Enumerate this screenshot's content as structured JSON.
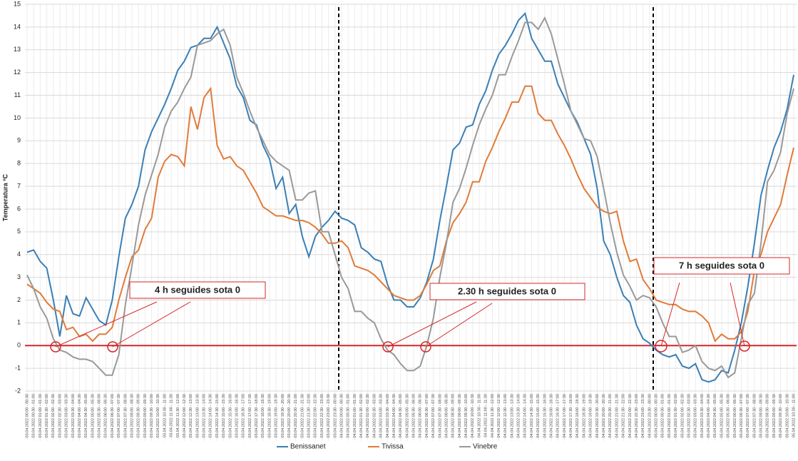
{
  "chart_data": {
    "type": "line",
    "y_label": "Temperatura ºC",
    "annotations": [
      "4 h seguides sota 0",
      "2.30 h seguides sota 0",
      "7 h seguides sota 0"
    ],
    "ylim": [
      -2,
      15
    ],
    "yticks": [
      -2,
      -1,
      0,
      1,
      2,
      3,
      4,
      5,
      6,
      7,
      8,
      9,
      10,
      11,
      12,
      13,
      14,
      15
    ],
    "grid": true,
    "legend": "bottom",
    "categories": [
      "03.04.2022 00:00 - 00:30",
      "03.04.2022 00:30 - 01:00",
      "03.04.2022 01:00 - 01:30",
      "03.04.2022 01:30 - 02:00",
      "03.04.2022 02:00 - 02:30",
      "03.04.2022 02:30 - 03:00",
      "03.04.2022 03:00 - 03:30",
      "03.04.2022 03:30 - 04:00",
      "03.04.2022 04:00 - 04:30",
      "03.04.2022 04:30 - 05:00",
      "03.04.2022 05:00 - 05:30",
      "03.04.2022 05:30 - 06:00",
      "03.04.2022 06:00 - 06:30",
      "03.04.2022 06:30 - 07:00",
      "03.04.2022 07:00 - 07:30",
      "03.04.2022 07:30 - 08:00",
      "03.04.2022 08:00 - 08:30",
      "03.04.2022 08:30 - 09:00",
      "03.04.2022 09:00 - 09:30",
      "03.04.2022 09:30 - 10:00",
      "03.04.2022 10:00 - 10:30",
      "03.04.2022 10:30 - 11:00",
      "03.04.2022 11:00 - 11:30",
      "03.04.2022 11:30 - 12:00",
      "03.04.2022 12:00 - 12:30",
      "03.04.2022 12:30 - 13:00",
      "03.04.2022 13:00 - 13:30",
      "03.04.2022 13:30 - 14:00",
      "03.04.2022 14:00 - 14:30",
      "03.04.2022 14:30 - 15:00",
      "03.04.2022 15:00 - 15:30",
      "03.04.2022 15:30 - 16:00",
      "03.04.2022 16:00 - 16:30",
      "03.04.2022 16:30 - 17:00",
      "03.04.2022 17:00 - 17:30",
      "03.04.2022 17:30 - 18:00",
      "03.04.2022 18:00 - 18:30",
      "03.04.2022 18:30 - 19:00",
      "03.04.2022 19:00 - 19:30",
      "03.04.2022 19:30 - 20:00",
      "03.04.2022 20:00 - 20:30",
      "03.04.2022 20:30 - 21:00",
      "03.04.2022 21:00 - 21:30",
      "03.04.2022 21:30 - 22:00",
      "03.04.2022 22:00 - 22:30",
      "03.04.2022 22:30 - 23:00",
      "03.04.2022 23:00 - 23:30",
      "03.04.2022 23:30 - 00:00",
      "04.04.2022 00:00 - 00:30",
      "04.04.2022 00:30 - 01:00",
      "04.04.2022 01:00 - 01:30",
      "04.04.2022 01:30 - 02:00",
      "04.04.2022 02:00 - 02:30",
      "04.04.2022 02:30 - 03:00",
      "04.04.2022 03:00 - 03:30",
      "04.04.2022 03:30 - 04:00",
      "04.04.2022 04:00 - 04:30",
      "04.04.2022 04:30 - 05:00",
      "04.04.2022 05:00 - 05:30",
      "04.04.2022 05:30 - 06:00",
      "04.04.2022 06:00 - 06:30",
      "04.04.2022 06:30 - 07:00",
      "04.04.2022 07:00 - 07:30",
      "04.04.2022 07:30 - 08:00",
      "04.04.2022 08:00 - 08:30",
      "04.04.2022 08:30 - 09:00",
      "04.04.2022 09:00 - 09:30",
      "04.04.2022 09:30 - 10:00",
      "04.04.2022 10:00 - 10:30",
      "04.04.2022 10:30 - 11:00",
      "04.04.2022 11:00 - 11:30",
      "04.04.2022 11:30 - 12:00",
      "04.04.2022 12:00 - 12:30",
      "04.04.2022 12:30 - 13:00",
      "04.04.2022 13:00 - 13:30",
      "04.04.2022 13:30 - 14:00",
      "04.04.2022 14:00 - 14:30",
      "04.04.2022 14:30 - 15:00",
      "04.04.2022 15:00 - 15:30",
      "04.04.2022 15:30 - 16:00",
      "04.04.2022 16:00 - 16:30",
      "04.04.2022 16:30 - 17:00",
      "04.04.2022 17:00 - 17:30",
      "04.04.2022 17:30 - 18:00",
      "04.04.2022 18:00 - 18:30",
      "04.04.2022 18:30 - 19:00",
      "04.04.2022 19:00 - 19:30",
      "04.04.2022 19:30 - 20:00",
      "04.04.2022 20:00 - 20:30",
      "04.04.2022 20:30 - 21:00",
      "04.04.2022 21:00 - 21:30",
      "04.04.2022 21:30 - 22:00",
      "04.04.2022 22:00 - 22:30",
      "04.04.2022 22:30 - 23:00",
      "04.04.2022 23:00 - 23:30",
      "04.04.2022 23:30 - 00:00",
      "05.04.2022 00:00 - 00:30",
      "05.04.2022 00:30 - 01:00",
      "05.04.2022 01:00 - 01:30",
      "05.04.2022 01:30 - 02:00",
      "05.04.2022 02:00 - 02:30",
      "05.04.2022 02:30 - 03:00",
      "05.04.2022 03:00 - 03:30",
      "05.04.2022 03:30 - 04:00",
      "05.04.2022 04:00 - 04:30",
      "05.04.2022 04:30 - 05:00",
      "05.04.2022 05:00 - 05:30",
      "05.04.2022 05:30 - 06:00",
      "05.04.2022 06:00 - 06:30",
      "05.04.2022 06:30 - 07:00",
      "05.04.2022 07:00 - 07:30",
      "05.04.2022 07:30 - 08:00",
      "05.04.2022 08:00 - 08:30",
      "05.04.2022 08:30 - 09:00",
      "05.04.2022 09:00 - 09:30",
      "05.04.2022 09:30 - 10:00",
      "05.04.2022 10:00 - 10:30",
      "05.04.2022 10:30 - 11:00"
    ],
    "series": [
      {
        "name": "Benissanet",
        "color": "#3a7fb5",
        "values": [
          4.1,
          4.2,
          3.7,
          3.4,
          2.0,
          0.4,
          2.2,
          1.4,
          1.3,
          2.1,
          1.6,
          1.1,
          0.9,
          2.0,
          3.9,
          5.6,
          6.2,
          7.0,
          8.6,
          9.4,
          10.0,
          10.6,
          11.3,
          12.1,
          12.5,
          13.1,
          13.2,
          13.5,
          13.5,
          14.0,
          13.3,
          12.6,
          11.4,
          10.9,
          9.9,
          9.7,
          8.8,
          8.2,
          6.9,
          7.4,
          5.8,
          6.2,
          4.8,
          3.9,
          4.8,
          5.2,
          5.5,
          5.9,
          5.6,
          5.5,
          5.3,
          4.3,
          4.1,
          3.8,
          3.7,
          2.7,
          2.0,
          2.0,
          1.7,
          1.7,
          2.1,
          2.8,
          3.8,
          5.5,
          7.0,
          8.6,
          8.9,
          9.6,
          9.7,
          10.6,
          11.2,
          12.1,
          12.8,
          13.2,
          13.7,
          14.3,
          14.6,
          13.5,
          13.0,
          12.5,
          12.5,
          11.5,
          10.9,
          10.3,
          9.8,
          9.1,
          8.4,
          6.9,
          4.6,
          4.0,
          3.0,
          2.2,
          1.9,
          0.9,
          0.3,
          0.1,
          -0.2,
          -0.4,
          -0.5,
          -0.4,
          -0.9,
          -1.0,
          -0.8,
          -1.5,
          -1.6,
          -1.5,
          -1.1,
          -1.2,
          -0.2,
          1.0,
          2.6,
          4.5,
          6.6,
          7.7,
          8.7,
          9.4,
          10.4,
          11.9
        ]
      },
      {
        "name": "Tivissa",
        "color": "#e07b39",
        "values": [
          2.7,
          2.5,
          2.3,
          1.9,
          1.6,
          1.5,
          0.7,
          0.8,
          0.4,
          0.5,
          0.2,
          0.5,
          0.5,
          0.8,
          2.0,
          3.0,
          3.9,
          4.2,
          5.1,
          5.6,
          7.4,
          8.1,
          8.4,
          8.3,
          7.9,
          10.5,
          9.5,
          10.9,
          11.3,
          8.8,
          8.2,
          8.3,
          7.9,
          7.7,
          7.2,
          6.7,
          6.1,
          5.9,
          5.7,
          5.7,
          5.6,
          5.5,
          5.5,
          5.4,
          5.2,
          4.9,
          4.5,
          4.5,
          4.6,
          4.3,
          3.5,
          3.4,
          3.3,
          3.1,
          2.8,
          2.5,
          2.2,
          2.1,
          2.0,
          2.0,
          2.2,
          2.7,
          3.3,
          3.5,
          4.6,
          5.4,
          5.8,
          6.3,
          7.2,
          7.2,
          8.1,
          8.7,
          9.4,
          10.0,
          10.7,
          10.7,
          11.4,
          11.4,
          10.2,
          9.9,
          9.9,
          9.3,
          8.8,
          8.2,
          7.5,
          6.9,
          6.5,
          6.1,
          5.9,
          5.8,
          5.9,
          4.6,
          3.7,
          3.8,
          2.9,
          2.5,
          2.0,
          1.9,
          1.8,
          1.8,
          1.6,
          1.5,
          1.5,
          1.3,
          1.0,
          0.2,
          0.5,
          0.3,
          0.3,
          0.6,
          1.5,
          3.3,
          4.0,
          5.0,
          5.6,
          6.2,
          7.5,
          8.7
        ]
      },
      {
        "name": "Vinebre",
        "color": "#999999",
        "values": [
          3.1,
          2.5,
          1.7,
          1.2,
          0.3,
          -0.2,
          -0.3,
          -0.5,
          -0.6,
          -0.6,
          -0.7,
          -1.0,
          -1.3,
          -1.3,
          -0.4,
          1.8,
          3.5,
          5.3,
          6.6,
          7.5,
          8.4,
          9.6,
          10.3,
          10.7,
          11.3,
          11.8,
          13.2,
          13.3,
          13.4,
          13.7,
          13.9,
          13.2,
          11.8,
          11.1,
          10.3,
          9.6,
          9.0,
          8.4,
          8.1,
          7.9,
          7.7,
          6.4,
          6.4,
          6.7,
          6.8,
          5.0,
          5.0,
          4.0,
          3.0,
          2.5,
          1.5,
          1.5,
          1.2,
          1.0,
          0.3,
          -0.2,
          -0.4,
          -0.8,
          -1.1,
          -1.1,
          -0.9,
          0.0,
          1.2,
          3.0,
          4.5,
          6.3,
          6.9,
          7.8,
          8.8,
          9.7,
          10.4,
          11.0,
          11.9,
          11.9,
          12.7,
          13.4,
          14.2,
          14.2,
          13.9,
          14.4,
          13.7,
          12.6,
          11.5,
          10.3,
          9.7,
          9.1,
          9.0,
          8.3,
          6.9,
          5.4,
          4.1,
          3.1,
          2.6,
          2.0,
          2.2,
          2.1,
          1.7,
          1.0,
          0.4,
          0.4,
          -0.3,
          -0.2,
          0.0,
          -0.7,
          -1.0,
          -1.1,
          -0.9,
          -1.4,
          -1.2,
          0.3,
          1.8,
          2.3,
          4.5,
          7.2,
          7.7,
          8.5,
          10.2,
          11.3
        ]
      }
    ]
  }
}
